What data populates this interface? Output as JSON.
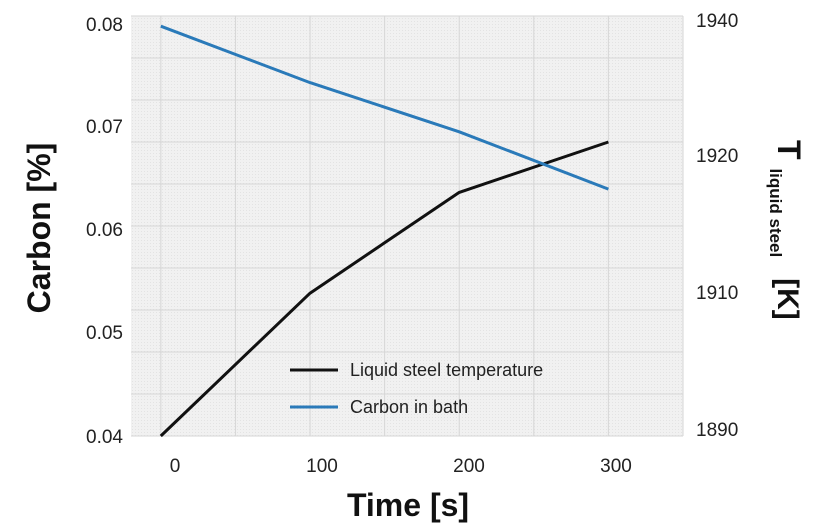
{
  "chart_data": {
    "type": "line",
    "xlabel": "Time [s]",
    "ylabel_left": "Carbon [%]",
    "ylabel_right_main": "T",
    "ylabel_right_sub": "liquid steel",
    "ylabel_right_unit": "[K]",
    "x_ticks": [
      "0",
      "100",
      "200",
      "300"
    ],
    "y_left_ticks": [
      "0.04",
      "0.05",
      "0.06",
      "0.07",
      "0.08"
    ],
    "y_right_ticks": [
      "1890",
      "1910",
      "1920",
      "1940"
    ],
    "xlim": [
      -20,
      350
    ],
    "ylim_left": [
      0.04,
      0.081
    ],
    "ylim_right": [
      1890,
      1940
    ],
    "grid": true,
    "legend_position": "bottom-center",
    "series": [
      {
        "name": "Liquid steel temperature",
        "axis": "right",
        "color": "#111111",
        "x": [
          0,
          100,
          200,
          300
        ],
        "y": [
          1890,
          1907,
          1919,
          1925
        ]
      },
      {
        "name": "Carbon in bath",
        "axis": "left",
        "color": "#2a7ab9",
        "x": [
          0,
          100,
          200,
          300
        ],
        "y": [
          0.08,
          0.0745,
          0.0697,
          0.0641
        ]
      }
    ]
  }
}
